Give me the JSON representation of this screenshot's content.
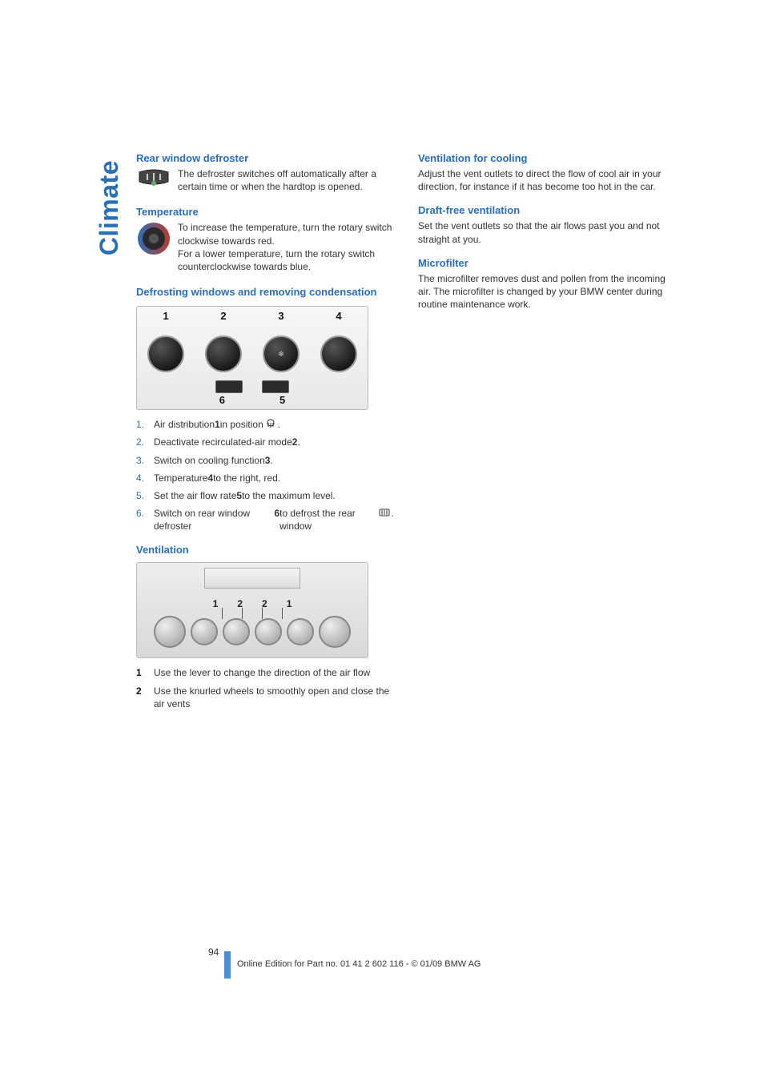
{
  "colors": {
    "accent": "#2a6fb5",
    "text": "#333333",
    "panel_bg_top": "#f7f7f7",
    "panel_bg_bot": "#e8e8e8",
    "panel_border": "#bbbbbb"
  },
  "side_tab": "Climate",
  "left": {
    "rear_defroster": {
      "heading": "Rear window defroster",
      "body": "The defroster switches off automatically after a certain time or when the hardtop is opened."
    },
    "temperature": {
      "heading": "Temperature",
      "body": "To increase the temperature, turn the rotary switch clockwise towards red.",
      "body2": "For a lower temperature, turn the rotary switch counterclockwise towards blue."
    },
    "defrost": {
      "heading": "Defrosting windows and removing condensation",
      "panel": {
        "top_labels": [
          "1",
          "2",
          "3",
          "4"
        ],
        "bottom_labels": [
          "6",
          "5"
        ]
      },
      "steps": [
        "Air distribution <b class=\"ref\">1</b> in position <span class=\"inline-glyph\"><svg width=\"14\" height=\"12\"><path d=\"M7 2 Q3 2 3 6 Q3 10 7 10 Q11 10 11 6 Q11 2 7 2 M4 6 L4 11 M7 6 L7 12 M10 6 L10 11\" fill=\"none\" stroke=\"#333\" stroke-width=\"1\"/></svg></span>.",
        "Deactivate recirculated-air mode <b class=\"ref\">2</b>.",
        "Switch on cooling function <b class=\"ref\">3</b>.",
        "Temperature <b class=\"ref\">4</b> to the right, red.",
        "Set the air flow rate <b class=\"ref\">5</b> to the maximum level.",
        "Switch on rear window defroster <b class=\"ref\">6</b> to defrost the rear window <span class=\"inline-glyph\"><svg width=\"14\" height=\"10\"><rect x=\"1\" y=\"1\" width=\"12\" height=\"8\" rx=\"1\" fill=\"none\" stroke=\"#333\" stroke-width=\"1\"/><path d=\"M4 2 L4 8 M7 2 L7 8 M10 2 L10 8\" stroke=\"#333\" stroke-width=\"1\"/></svg></span>."
      ]
    },
    "ventilation": {
      "heading": "Ventilation",
      "labels": [
        "1",
        "2",
        "2",
        "1"
      ],
      "items": [
        {
          "num": "1",
          "text": "Use the lever to change the direction of the air flow"
        },
        {
          "num": "2",
          "text": "Use the knurled wheels to smoothly open and close the air vents"
        }
      ]
    }
  },
  "right": {
    "vent_cool": {
      "heading": "Ventilation for cooling",
      "body": "Adjust the vent outlets to direct the flow of cool air in your direction, for instance if it has become too hot in the car."
    },
    "draft_free": {
      "heading": "Draft-free ventilation",
      "body": "Set the vent outlets so that the air flows past you and not straight at you."
    },
    "microfilter": {
      "heading": "Microfilter",
      "body": "The microfilter removes dust and pollen from the incoming air. The microfilter is changed by your BMW center during routine maintenance work."
    }
  },
  "footer": {
    "page_number": "94",
    "edition_line": "Online Edition for Part no. 01 41 2 602 116 - © 01/09 BMW AG"
  }
}
